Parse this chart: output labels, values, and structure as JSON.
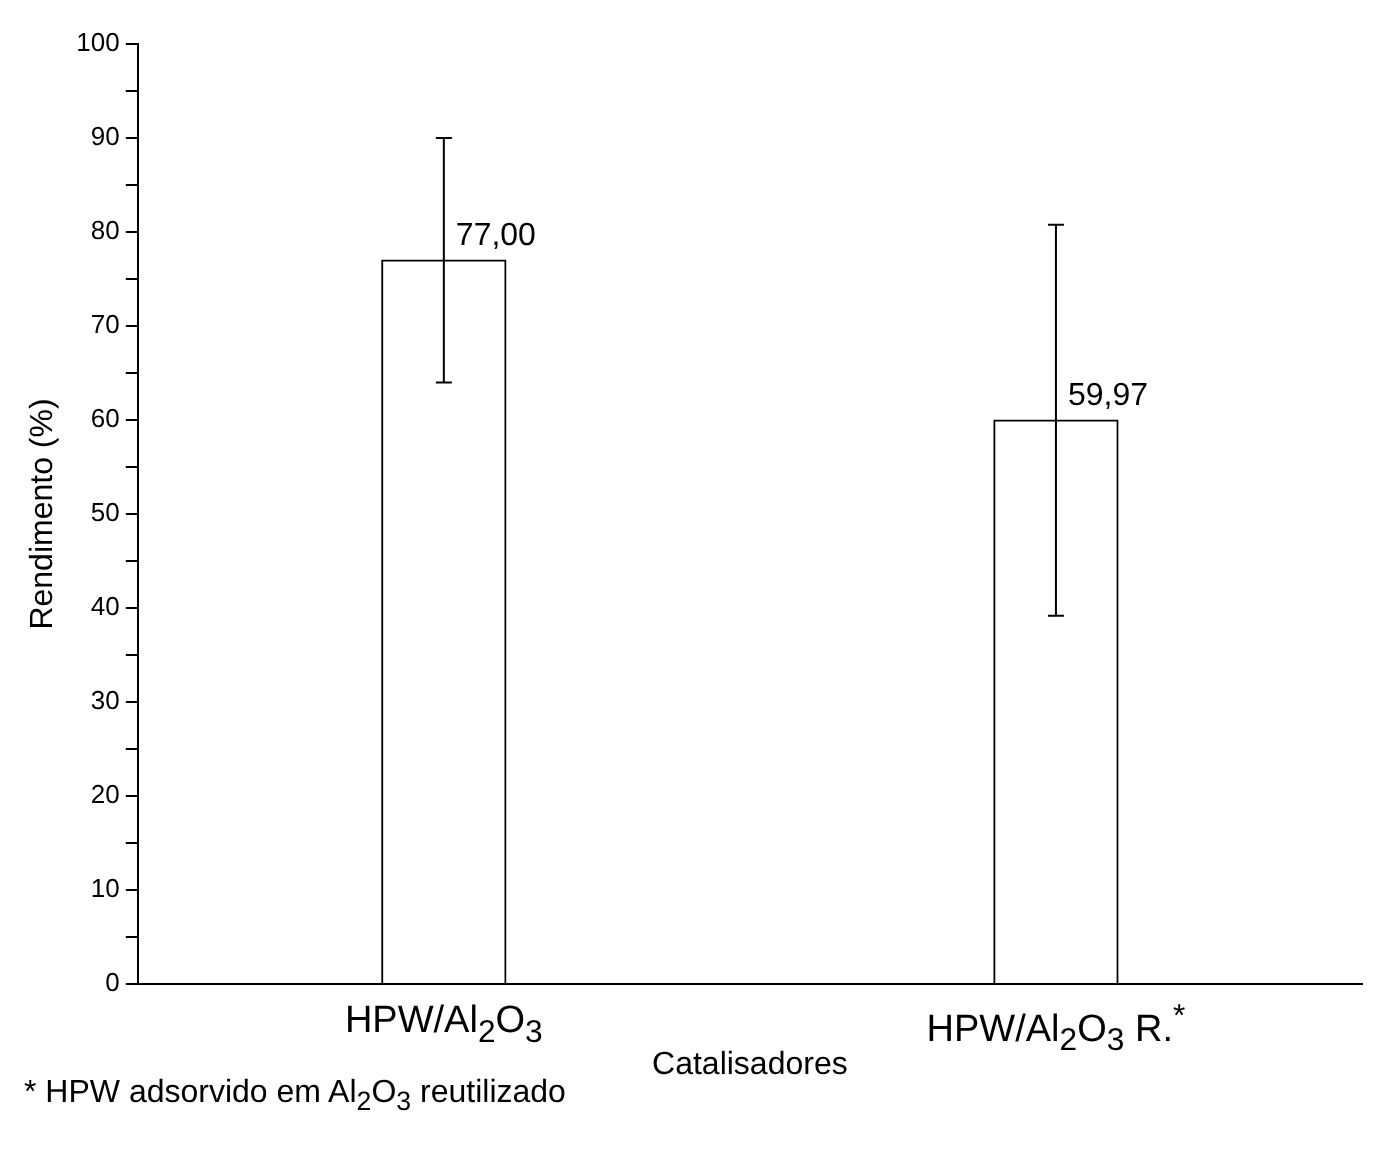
{
  "chart_data": {
    "type": "bar",
    "xlabel": "Catalisadores",
    "ylabel": "Rendimento (%)",
    "categories": [
      "HPW/Al$_{2}$O$_{3}$",
      "HPW/Al$_{2}$O$_{3}$ R.$^{*}$"
    ],
    "values": [
      77.0,
      59.97
    ],
    "errors": [
      13,
      20.8
    ],
    "value_labels": [
      "77,00",
      "59,97"
    ],
    "color": "#ffffff",
    "ylim": [
      0,
      100
    ],
    "yticks": [
      0,
      {
        "value": 5,
        "label": null
      },
      10,
      {
        "value": 15,
        "label": null
      },
      20,
      {
        "value": 25,
        "label": null
      },
      30,
      {
        "value": 35,
        "label": null
      },
      40,
      {
        "value": 45,
        "label": null
      },
      50,
      {
        "value": 55,
        "label": null
      },
      60,
      {
        "value": 65,
        "label": null
      },
      70,
      {
        "value": 75,
        "label": null
      },
      80,
      {
        "value": 85,
        "label": null
      },
      90,
      {
        "value": 95,
        "label": null
      },
      100
    ],
    "grid": false,
    "legend": false,
    "annotations": [
      "* HPW adsorvido em Al$_{2}$O$_{3}$ reutilizado"
    ]
  }
}
